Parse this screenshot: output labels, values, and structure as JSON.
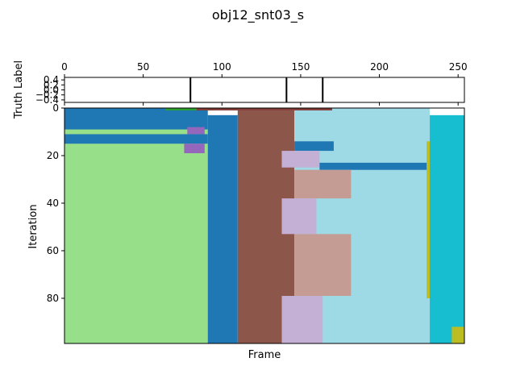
{
  "chart_data": [
    {
      "type": "line",
      "title": "obj12_snt03_s",
      "ylabel": "Truth Label",
      "xlim": [
        0,
        254
      ],
      "ylim": [
        -0.5,
        0.5
      ],
      "x_ticks": [
        0,
        50,
        100,
        150,
        200,
        250
      ],
      "y_ticks": [
        -0.4,
        -0.2,
        0.0,
        0.2,
        0.4
      ],
      "y_tick_labels": [
        "−0.4",
        "−0.2",
        "0.0",
        "0.2",
        "0.4"
      ],
      "x_tick_position": "top",
      "boundaries": [
        80,
        141,
        164
      ]
    },
    {
      "type": "heatmap",
      "xlabel": "Frame",
      "ylabel": "Iteration",
      "xlim": [
        0,
        254
      ],
      "ylim": [
        99,
        0
      ],
      "y_ticks": [
        0,
        20,
        40,
        60,
        80
      ],
      "colors": {
        "light_green": "#98df8a",
        "blue": "#1f77b4",
        "brown": "#8c564b",
        "light_cyan": "#9edae5",
        "cyan": "#17becf",
        "olive": "#bcbd22",
        "lavender": "#c5b0d5",
        "rose": "#c49c94",
        "purple": "#9467bd",
        "green": "#2ca02c",
        "red_brown": "#843c39"
      },
      "segments": [
        {
          "label": "light_green",
          "x": [
            0,
            91
          ],
          "y": [
            0,
            99
          ]
        },
        {
          "label": "blue",
          "x": [
            0,
            91
          ],
          "y": [
            0,
            9
          ]
        },
        {
          "label": "purple",
          "x": [
            78,
            89
          ],
          "y": [
            8,
            11
          ]
        },
        {
          "label": "blue",
          "x": [
            0,
            91
          ],
          "y": [
            11,
            15
          ]
        },
        {
          "label": "purple",
          "x": [
            76,
            89
          ],
          "y": [
            15,
            19
          ]
        },
        {
          "label": "blue",
          "x": [
            91,
            110
          ],
          "y": [
            3,
            99
          ]
        },
        {
          "label": "brown",
          "x": [
            110,
            146
          ],
          "y": [
            1,
            99
          ]
        },
        {
          "label": "light_cyan",
          "x": [
            146,
            232
          ],
          "y": [
            1,
            99
          ]
        },
        {
          "label": "blue",
          "x": [
            146,
            171
          ],
          "y": [
            14,
            18
          ]
        },
        {
          "label": "lavender",
          "x": [
            138,
            162
          ],
          "y": [
            18,
            25
          ]
        },
        {
          "label": "blue",
          "x": [
            162,
            254
          ],
          "y": [
            23,
            26
          ]
        },
        {
          "label": "rose",
          "x": [
            146,
            182
          ],
          "y": [
            26,
            38
          ]
        },
        {
          "label": "lavender",
          "x": [
            138,
            160
          ],
          "y": [
            38,
            53
          ]
        },
        {
          "label": "rose",
          "x": [
            146,
            182
          ],
          "y": [
            53,
            79
          ]
        },
        {
          "label": "lavender",
          "x": [
            138,
            164
          ],
          "y": [
            79,
            99
          ]
        },
        {
          "label": "olive",
          "x": [
            230,
            238
          ],
          "y": [
            14,
            80
          ]
        },
        {
          "label": "cyan",
          "x": [
            232,
            254
          ],
          "y": [
            3,
            99
          ]
        },
        {
          "label": "olive",
          "x": [
            246,
            254
          ],
          "y": [
            92,
            99
          ]
        },
        {
          "label": "green",
          "x": [
            64,
            95
          ],
          "y": [
            0,
            1
          ]
        },
        {
          "label": "red_brown",
          "x": [
            84,
            170
          ],
          "y": [
            0,
            1
          ]
        },
        {
          "label": "light_cyan",
          "x": [
            170,
            232
          ],
          "y": [
            0,
            1
          ]
        }
      ]
    }
  ]
}
